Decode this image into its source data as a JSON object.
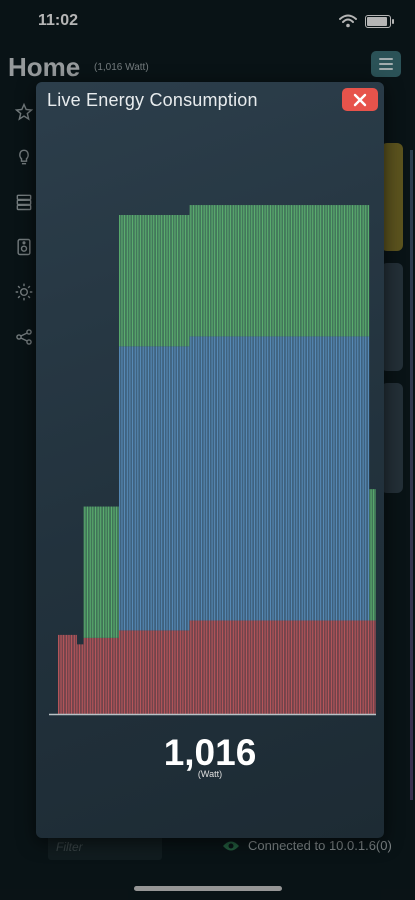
{
  "status_bar": {
    "time": "11:02"
  },
  "page": {
    "title": "Home",
    "subtitle": "(1,016 Watt)",
    "nav_icons": [
      "star-icon",
      "bulb-icon",
      "layers-icon",
      "speaker-icon",
      "sun-icon",
      "share-icon"
    ]
  },
  "footer": {
    "filter_placeholder": "Filter",
    "connection_text": "Connected to 10.0.1.6(0)"
  },
  "modal": {
    "title": "Live Energy Consumption",
    "close_icon": "close-icon",
    "value": "1,016",
    "unit": "(Watt)"
  },
  "colors": {
    "series_red": "#b5555a",
    "series_blue": "#5689b5",
    "series_green": "#5aac6e",
    "close_button": "#e7534b"
  },
  "chart_data": {
    "type": "bar",
    "stacked": true,
    "title": "",
    "xlabel": "",
    "ylabel": "",
    "ylim": [
      0,
      1200
    ],
    "grid": false,
    "legend": "none",
    "series": [
      {
        "color": "#b5555a",
        "values": [
          159,
          159,
          159,
          159,
          159,
          159,
          159,
          159,
          159,
          159,
          159,
          159,
          140,
          140,
          140,
          140,
          153,
          153,
          153,
          153,
          153,
          153,
          153,
          153,
          153,
          153,
          153,
          153,
          153,
          153,
          153,
          153,
          153,
          153,
          153,
          153,
          153,
          153,
          168,
          168,
          168,
          168,
          168,
          168,
          168,
          168,
          168,
          168,
          168,
          168,
          168,
          168,
          168,
          168,
          168,
          168,
          168,
          168,
          168,
          168,
          168,
          168,
          168,
          168,
          168,
          168,
          168,
          168,
          168,
          168,
          168,
          168,
          168,
          168,
          168,
          168,
          168,
          168,
          168,
          168,
          168,
          168,
          188,
          188,
          188,
          188,
          188,
          188,
          188,
          188,
          188,
          188,
          188,
          188,
          188,
          188,
          188,
          188,
          188,
          188,
          188,
          188,
          188,
          188,
          188,
          188,
          188,
          188,
          188,
          188,
          188,
          188,
          188,
          188,
          188,
          188,
          188,
          188,
          188,
          188,
          188,
          188,
          188,
          188,
          188,
          188,
          188,
          188,
          188,
          188,
          188,
          188,
          188,
          188,
          188,
          188,
          188,
          188,
          188,
          188,
          188,
          188,
          188,
          188,
          188,
          188,
          188,
          188,
          188,
          188,
          188,
          188,
          188,
          188,
          188,
          188,
          188,
          188,
          188,
          188,
          188,
          188,
          188,
          188,
          188,
          188,
          188,
          188,
          188,
          188,
          188,
          188,
          188,
          188,
          188,
          188,
          188,
          188,
          188,
          188,
          188,
          188,
          188,
          188,
          188,
          188,
          188,
          188,
          188,
          188,
          188,
          188,
          188,
          188,
          188,
          188,
          188,
          188
        ]
      },
      {
        "color": "#5689b5",
        "values": [
          0,
          0,
          0,
          0,
          0,
          0,
          0,
          0,
          0,
          0,
          0,
          0,
          0,
          0,
          0,
          0,
          0,
          0,
          0,
          0,
          0,
          0,
          0,
          0,
          0,
          0,
          0,
          0,
          0,
          0,
          0,
          0,
          0,
          0,
          0,
          0,
          0,
          0,
          571,
          571,
          571,
          571,
          571,
          571,
          571,
          571,
          571,
          571,
          571,
          571,
          571,
          571,
          571,
          571,
          571,
          571,
          571,
          571,
          571,
          571,
          571,
          571,
          571,
          571,
          571,
          571,
          571,
          571,
          571,
          571,
          571,
          571,
          571,
          571,
          571,
          571,
          571,
          571,
          571,
          571,
          571,
          571,
          571,
          571,
          571,
          571,
          571,
          571,
          571,
          571,
          571,
          571,
          571,
          571,
          571,
          571,
          571,
          571,
          571,
          571,
          571,
          571,
          571,
          571,
          571,
          571,
          571,
          571,
          571,
          571,
          571,
          571,
          571,
          571,
          571,
          571,
          571,
          571,
          571,
          571,
          571,
          571,
          571,
          571,
          571,
          571,
          571,
          571,
          571,
          571,
          571,
          571,
          571,
          571,
          571,
          571,
          571,
          571,
          571,
          571,
          571,
          571,
          571,
          571,
          571,
          571,
          571,
          571,
          571,
          571,
          571,
          571,
          571,
          571,
          571,
          571,
          571,
          571,
          571,
          571,
          571,
          571,
          571,
          571,
          571,
          571,
          571,
          571,
          571,
          571,
          571,
          571,
          571,
          571,
          571,
          571,
          571,
          571,
          571,
          571,
          571,
          571,
          571,
          571,
          571,
          571,
          571,
          571,
          571,
          571,
          571,
          571,
          571,
          571
        ]
      },
      {
        "color": "#5aac6e",
        "values": [
          0,
          0,
          0,
          0,
          0,
          0,
          0,
          0,
          0,
          0,
          0,
          0,
          0,
          0,
          0,
          0,
          264,
          264,
          264,
          264,
          264,
          264,
          264,
          264,
          264,
          264,
          264,
          264,
          264,
          264,
          264,
          264,
          264,
          264,
          264,
          264,
          264,
          264,
          264,
          264,
          264,
          264,
          264,
          264,
          264,
          264,
          264,
          264,
          264,
          264,
          264,
          264,
          264,
          264,
          264,
          264,
          264,
          264,
          264,
          264,
          264,
          264,
          264,
          264,
          264,
          264,
          264,
          264,
          264,
          264,
          264,
          264,
          264,
          264,
          264,
          264,
          264,
          264,
          264,
          264,
          264,
          264,
          264,
          264,
          264,
          264,
          264,
          264,
          264,
          264,
          264,
          264,
          264,
          264,
          264,
          264,
          264,
          264,
          264,
          264,
          264,
          264,
          264,
          264,
          264,
          264,
          264,
          264,
          264,
          264,
          264,
          264,
          264,
          264,
          264,
          264,
          264,
          264,
          264,
          264,
          264,
          264,
          264,
          264,
          264,
          264,
          264,
          264,
          264,
          264,
          264,
          264,
          264,
          264,
          264,
          264,
          264,
          264,
          264,
          264,
          264,
          264,
          264,
          264,
          264,
          264,
          264,
          264,
          264,
          264,
          264,
          264,
          264,
          264,
          264,
          264,
          264,
          264,
          264,
          264,
          264,
          264,
          264,
          264,
          264,
          264,
          264,
          264,
          264,
          264,
          264,
          264,
          264,
          264,
          264,
          264,
          264,
          264,
          264,
          264,
          264,
          264,
          264,
          264,
          264,
          264,
          264,
          264,
          264,
          264,
          264,
          264,
          264,
          264,
          264,
          264,
          264,
          264,
          264,
          264
        ]
      }
    ]
  }
}
